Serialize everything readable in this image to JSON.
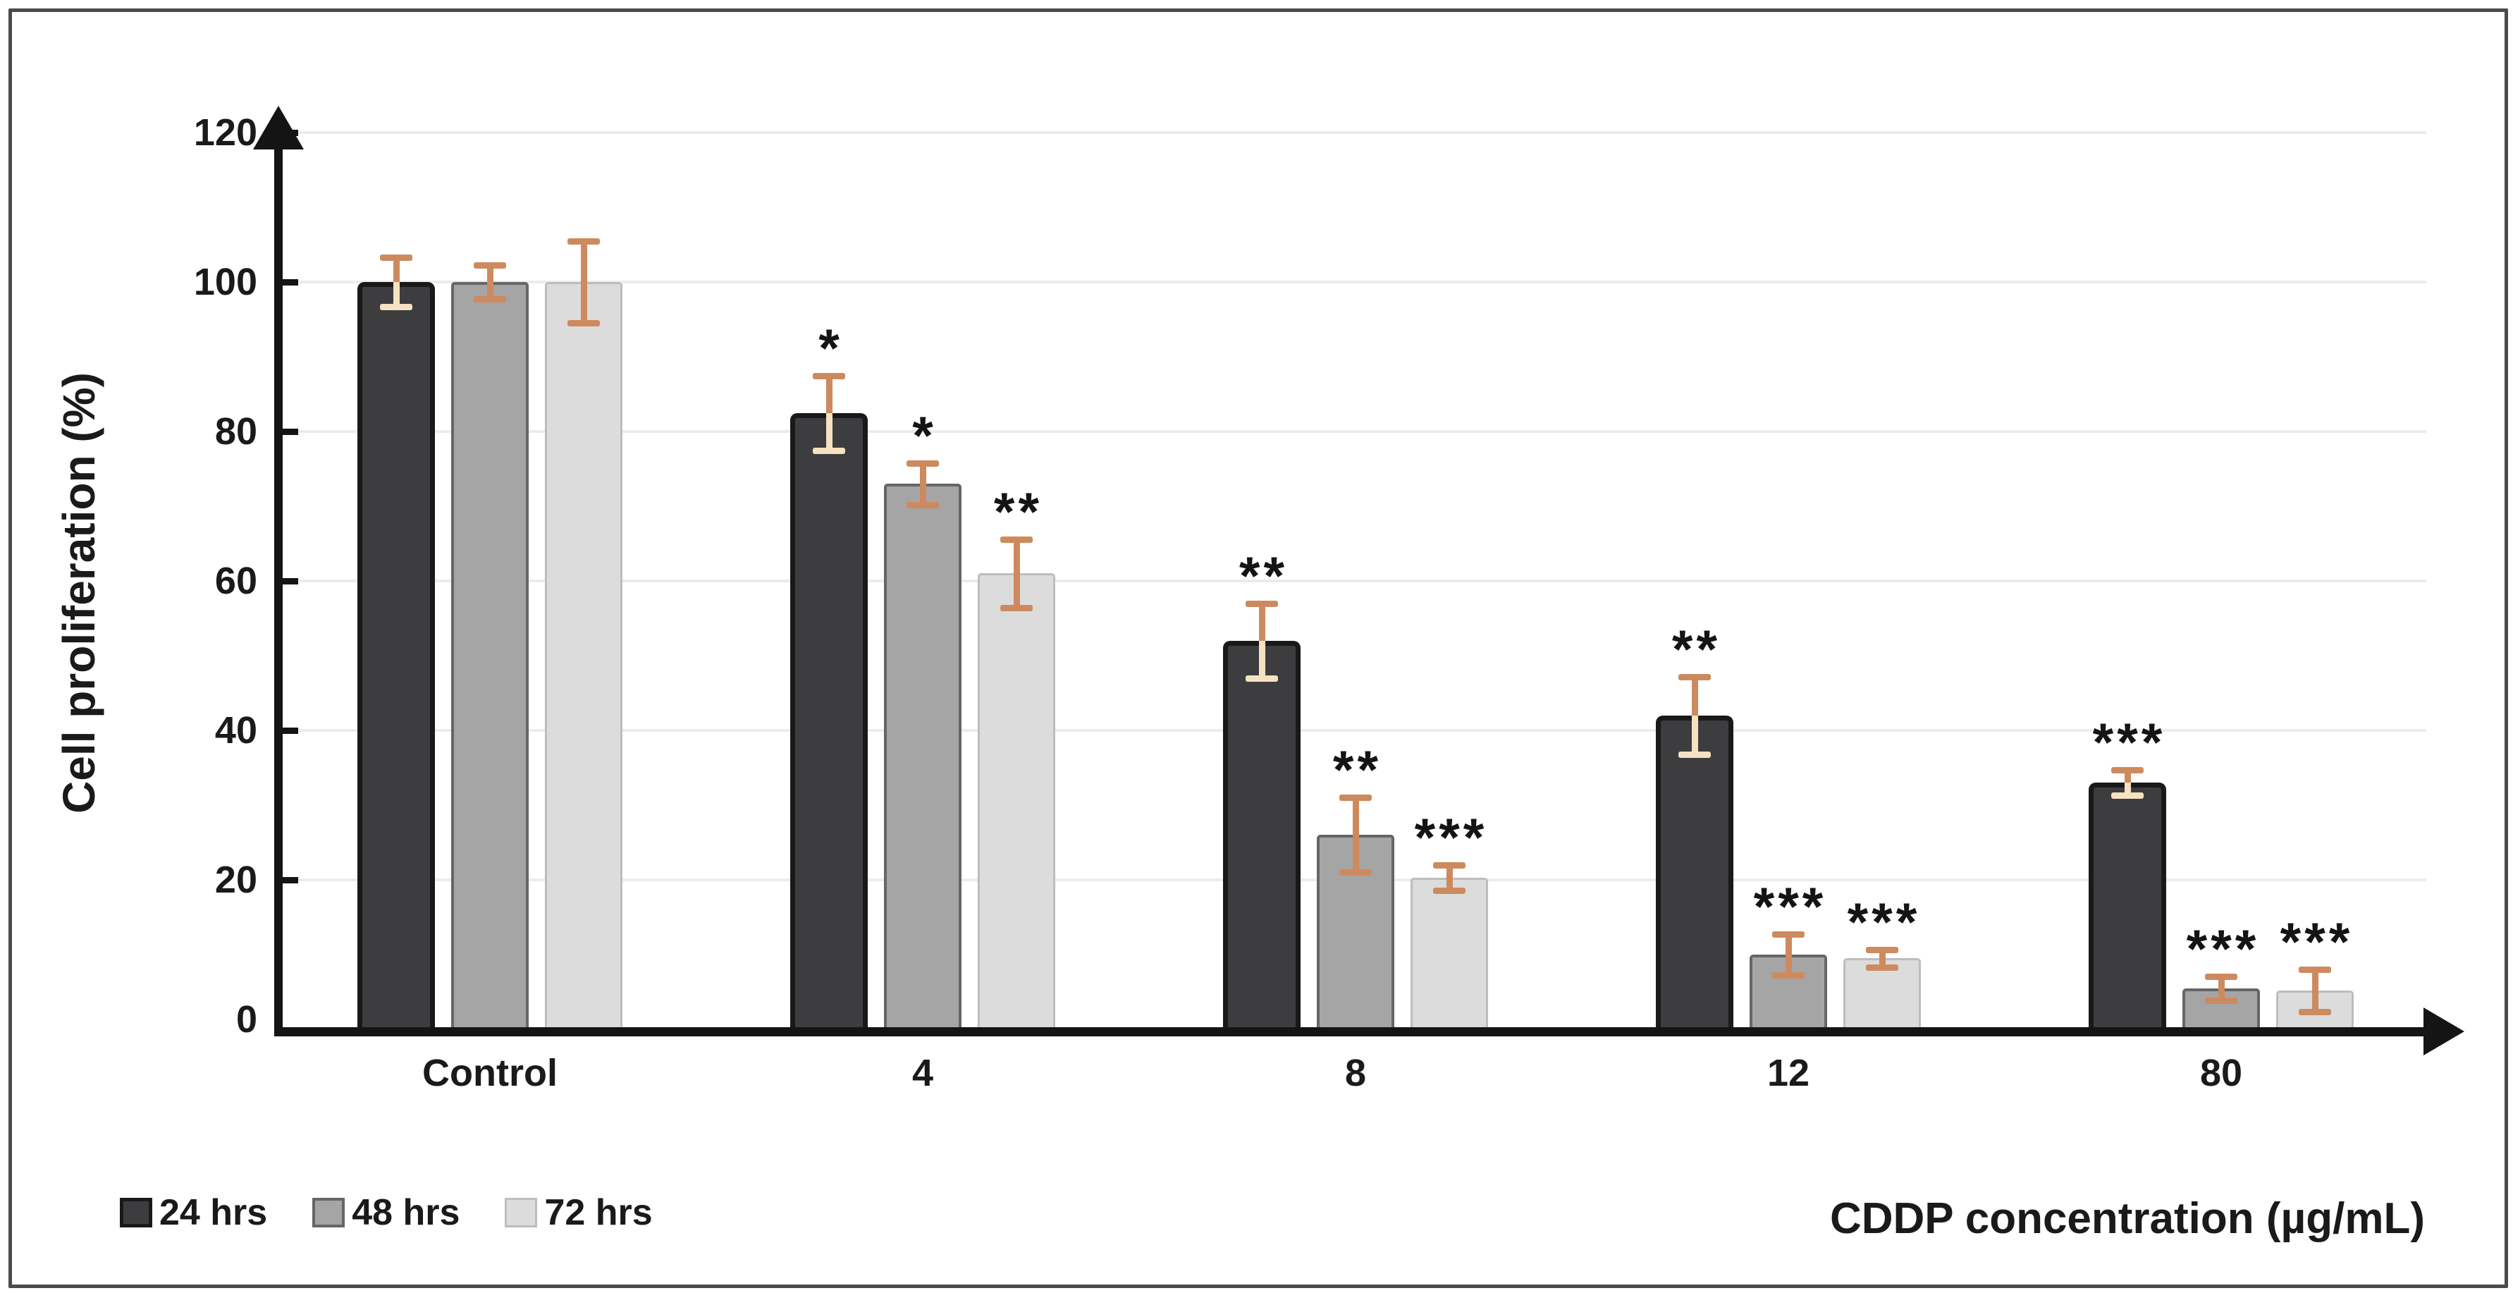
{
  "chart_data": {
    "type": "bar",
    "title": "",
    "xlabel": "CDDP concentration (µg/mL)",
    "ylabel": "Cell proliferation (%)",
    "ylim": [
      0,
      120
    ],
    "y_ticks": [
      0,
      20,
      40,
      60,
      80,
      100,
      120
    ],
    "grid": true,
    "legend_position": "bottom-left",
    "categories": [
      "Control",
      "4",
      "8",
      "12",
      "80"
    ],
    "series": [
      {
        "name": "24 hrs",
        "color": "#3d3d3f",
        "border_color": "#191919",
        "values": [
          100,
          82.5,
          52,
          42,
          33
        ],
        "errors": [
          3.3,
          5,
          5,
          5.2,
          1.7
        ],
        "significance": [
          "",
          "*",
          "**",
          "**",
          "***"
        ]
      },
      {
        "name": "48 hrs",
        "color": "#a5a5a5",
        "border_color": "#666666",
        "values": [
          100,
          73,
          26,
          10,
          5.5
        ],
        "errors": [
          2.3,
          2.8,
          5,
          2.7,
          1.6
        ],
        "significance": [
          "",
          "*",
          "**",
          "***",
          "***"
        ]
      },
      {
        "name": "72 hrs",
        "color": "#dcdcdc",
        "border_color": "#bdbdbd",
        "values": [
          100,
          61,
          20.3,
          9.5,
          5.2
        ],
        "errors": [
          5.5,
          4.6,
          1.7,
          1.2,
          2.8
        ],
        "significance": [
          "",
          "**",
          "***",
          "***",
          "***"
        ]
      }
    ],
    "error_bar_color": "#cd8a5f",
    "error_bar_overlay_on_dark": "#f6e2c1",
    "gridline_color": "#ececec",
    "axis_color": "#141414",
    "text_color": "#1a1a1a"
  }
}
